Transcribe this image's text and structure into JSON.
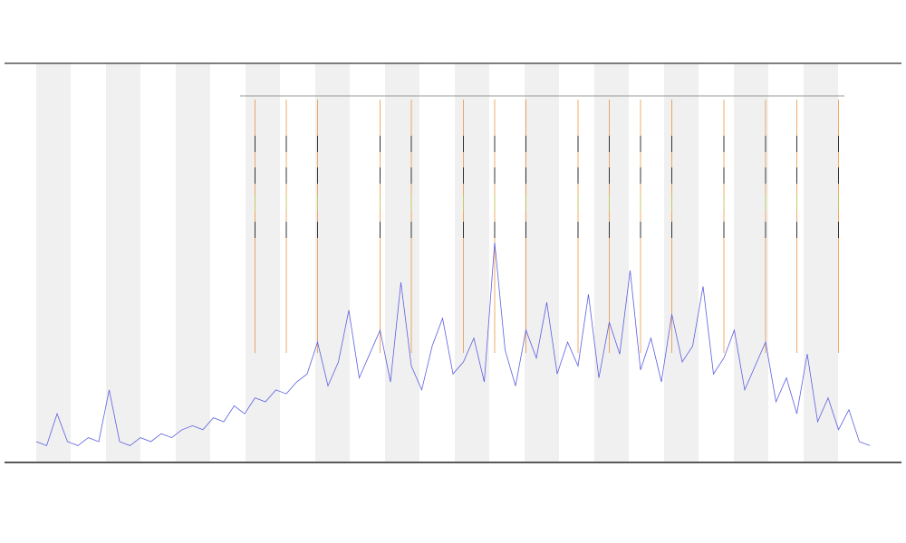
{
  "chart_data": {
    "type": "line",
    "x": [
      0,
      1,
      2,
      3,
      4,
      5,
      6,
      7,
      8,
      9,
      10,
      11,
      12,
      13,
      14,
      15,
      16,
      17,
      18,
      19,
      20,
      21,
      22,
      23,
      24,
      25,
      26,
      27,
      28,
      29,
      30,
      31,
      32,
      33,
      34,
      35,
      36,
      37,
      38,
      39,
      40,
      41,
      42,
      43,
      44,
      45,
      46,
      47,
      48,
      49,
      50,
      51,
      52,
      53,
      54,
      55,
      56,
      57,
      58,
      59,
      60,
      61,
      62,
      63,
      64,
      65,
      66,
      67,
      68,
      69,
      70,
      71,
      72,
      73,
      74,
      75,
      76,
      77,
      78,
      79,
      80
    ],
    "series": [
      {
        "color": "#5b5fe0",
        "values": [
          5,
          4,
          12,
          5,
          4,
          6,
          5,
          18,
          5,
          4,
          6,
          5,
          7,
          6,
          8,
          9,
          8,
          11,
          10,
          14,
          12,
          16,
          15,
          18,
          17,
          20,
          22,
          30,
          19,
          25,
          38,
          21,
          27,
          33,
          20,
          45,
          24,
          18,
          29,
          36,
          22,
          25,
          31,
          20,
          55,
          28,
          19,
          33,
          26,
          40,
          22,
          30,
          24,
          42,
          21,
          35,
          27,
          48,
          23,
          31,
          20,
          37,
          25,
          29,
          44,
          22,
          26,
          33,
          18,
          24,
          30,
          15,
          21,
          12,
          27,
          10,
          16,
          8,
          13,
          5,
          4
        ]
      }
    ],
    "event_x": [
      21,
      24,
      27,
      33,
      36,
      41,
      44,
      47,
      52,
      55,
      58,
      61,
      66,
      70,
      73,
      77
    ],
    "event_color": "#e8892a",
    "xlim": [
      0,
      80
    ],
    "ylim": [
      0,
      100
    ]
  }
}
